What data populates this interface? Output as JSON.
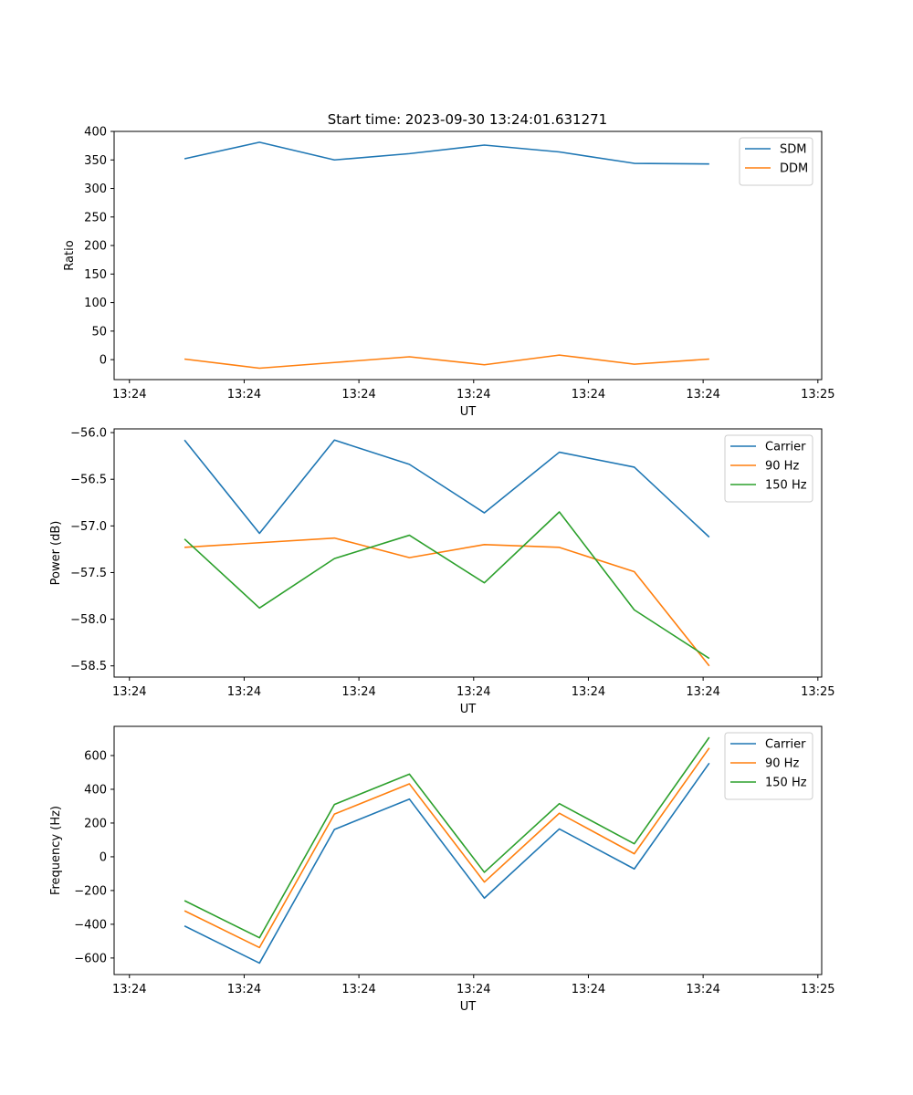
{
  "figure_title": "Start time: 2023-09-30 13:24:01.631271",
  "colors": {
    "blue": "#1f77b4",
    "orange": "#ff7f0e",
    "green": "#2ca02c"
  },
  "chart_data": [
    {
      "type": "line",
      "ylabel": "Ratio",
      "xlabel": "UT",
      "xlim": [
        0,
        9.25
      ],
      "xticks": [
        {
          "value": 0.2,
          "label": "13:24"
        },
        {
          "value": 1.7,
          "label": "13:24"
        },
        {
          "value": 3.2,
          "label": "13:24"
        },
        {
          "value": 4.7,
          "label": "13:24"
        },
        {
          "value": 6.2,
          "label": "13:24"
        },
        {
          "value": 7.7,
          "label": "13:24"
        },
        {
          "value": 9.2,
          "label": "13:25"
        }
      ],
      "ylim": [
        -35,
        400
      ],
      "yticks": [
        {
          "value": 0,
          "label": "0"
        },
        {
          "value": 50,
          "label": "50"
        },
        {
          "value": 100,
          "label": "100"
        },
        {
          "value": 150,
          "label": "150"
        },
        {
          "value": 200,
          "label": "200"
        },
        {
          "value": 250,
          "label": "250"
        },
        {
          "value": 300,
          "label": "300"
        },
        {
          "value": 350,
          "label": "350"
        },
        {
          "value": 400,
          "label": "400"
        }
      ],
      "x": [
        0.92,
        1.9,
        2.88,
        3.86,
        4.84,
        5.82,
        6.8,
        7.78
      ],
      "legend": "top-right",
      "series": [
        {
          "name": "SDM",
          "color": "#1f77b4",
          "values": [
            352,
            381,
            350,
            361,
            376,
            364,
            344,
            343
          ]
        },
        {
          "name": "DDM",
          "color": "#ff7f0e",
          "values": [
            1,
            -15,
            -5,
            5,
            -9,
            8,
            -8,
            1
          ]
        }
      ]
    },
    {
      "type": "line",
      "ylabel": "Power (dB)",
      "xlabel": "UT",
      "xlim": [
        0,
        9.25
      ],
      "xticks": [
        {
          "value": 0.2,
          "label": "13:24"
        },
        {
          "value": 1.7,
          "label": "13:24"
        },
        {
          "value": 3.2,
          "label": "13:24"
        },
        {
          "value": 4.7,
          "label": "13:24"
        },
        {
          "value": 6.2,
          "label": "13:24"
        },
        {
          "value": 7.7,
          "label": "13:24"
        },
        {
          "value": 9.2,
          "label": "13:25"
        }
      ],
      "ylim": [
        -58.62,
        -55.96
      ],
      "yticks": [
        {
          "value": -56.0,
          "label": "−56.0"
        },
        {
          "value": -56.5,
          "label": "−56.5"
        },
        {
          "value": -57.0,
          "label": "−57.0"
        },
        {
          "value": -57.5,
          "label": "−57.5"
        },
        {
          "value": -58.0,
          "label": "−58.0"
        },
        {
          "value": -58.5,
          "label": "−58.5"
        }
      ],
      "x": [
        0.92,
        1.9,
        2.88,
        3.86,
        4.84,
        5.82,
        6.8,
        7.78
      ],
      "legend": "top-right",
      "series": [
        {
          "name": "Carrier",
          "color": "#1f77b4",
          "values": [
            -56.08,
            -57.08,
            -56.08,
            -56.34,
            -56.86,
            -56.21,
            -56.37,
            -57.12
          ]
        },
        {
          "name": "90 Hz",
          "color": "#ff7f0e",
          "values": [
            -57.23,
            -57.18,
            -57.13,
            -57.34,
            -57.2,
            -57.23,
            -57.49,
            -58.5
          ]
        },
        {
          "name": "150 Hz",
          "color": "#2ca02c",
          "values": [
            -57.14,
            -57.88,
            -57.35,
            -57.1,
            -57.61,
            -56.85,
            -57.9,
            -58.42
          ]
        }
      ]
    },
    {
      "type": "line",
      "ylabel": "Frequency (Hz)",
      "xlabel": "UT",
      "xlim": [
        0,
        9.25
      ],
      "xticks": [
        {
          "value": 0.2,
          "label": "13:24"
        },
        {
          "value": 1.7,
          "label": "13:24"
        },
        {
          "value": 3.2,
          "label": "13:24"
        },
        {
          "value": 4.7,
          "label": "13:24"
        },
        {
          "value": 6.2,
          "label": "13:24"
        },
        {
          "value": 7.7,
          "label": "13:24"
        },
        {
          "value": 9.2,
          "label": "13:25"
        }
      ],
      "ylim": [
        -698,
        773
      ],
      "yticks": [
        {
          "value": -600,
          "label": "−600"
        },
        {
          "value": -400,
          "label": "−400"
        },
        {
          "value": -200,
          "label": "−200"
        },
        {
          "value": 0,
          "label": "0"
        },
        {
          "value": 200,
          "label": "200"
        },
        {
          "value": 400,
          "label": "400"
        },
        {
          "value": 600,
          "label": "600"
        }
      ],
      "x": [
        0.92,
        1.9,
        2.88,
        3.86,
        4.84,
        5.82,
        6.8,
        7.78
      ],
      "legend": "top-right",
      "series": [
        {
          "name": "Carrier",
          "color": "#1f77b4",
          "values": [
            -410,
            -630,
            162,
            342,
            -245,
            165,
            -72,
            555
          ]
        },
        {
          "name": "90 Hz",
          "color": "#ff7f0e",
          "values": [
            -320,
            -538,
            253,
            432,
            -150,
            258,
            18,
            645
          ]
        },
        {
          "name": "150 Hz",
          "color": "#2ca02c",
          "values": [
            -260,
            -480,
            310,
            490,
            -92,
            315,
            77,
            708
          ]
        }
      ]
    }
  ]
}
